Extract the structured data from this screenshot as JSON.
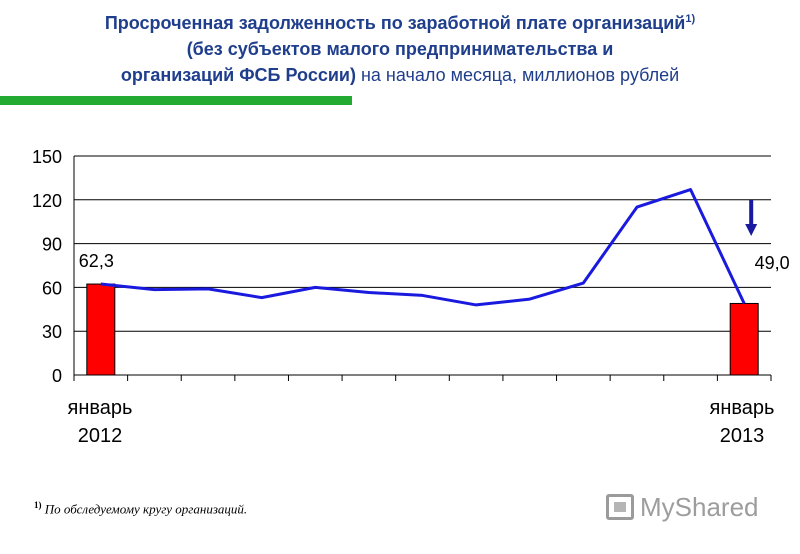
{
  "title": {
    "line1": "Просроченная задолженность по заработной плате организаций",
    "line1_sup": "1)",
    "line2": "(без субъектов малого предпринимательства и",
    "line3_bold": "организаций ФСБ России)",
    "line3_rest": " на начало месяца, миллионов рублей"
  },
  "chart_data": {
    "type": "bar+line",
    "yticks": [
      "0",
      "30",
      "60",
      "90",
      "120",
      "150"
    ],
    "ylim": [
      0,
      150
    ],
    "x_labels": [
      {
        "month": "январь",
        "year": "2012"
      },
      {
        "month": "январь",
        "year": "2013"
      }
    ],
    "bars": [
      {
        "index": 0,
        "value": 62.3,
        "label": "62,3"
      },
      {
        "index": 12,
        "value": 49.0,
        "label": "49,0"
      }
    ],
    "line": [
      62.3,
      58.5,
      59,
      53,
      60,
      56.5,
      54.5,
      48,
      52,
      63,
      115,
      127,
      49.0
    ],
    "bar_color": "#ff0000",
    "line_color": "#1a1adf",
    "arrow_color": "#1a1aa0",
    "grid": true
  },
  "footnote": {
    "sup": "1)",
    "text": " По обследуемому кругу организаций."
  },
  "logo": {
    "text": "MyShared"
  }
}
